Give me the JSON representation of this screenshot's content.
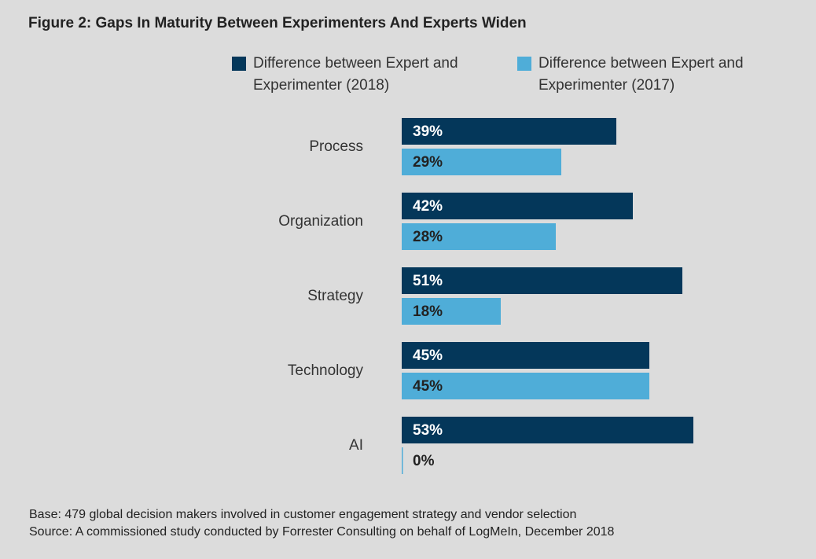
{
  "title": "Figure 2: Gaps In Maturity Between Experimenters And Experts Widen",
  "footer": {
    "base": "Base: 479 global decision makers involved in customer engagement strategy and vendor selection",
    "source": "Source: A commissioned study conducted by Forrester Consulting on behalf of LogMeIn, December 2018"
  },
  "colors": {
    "series_2018": "#04375a",
    "series_2017": "#4fadd8",
    "background": "#dcdcdc"
  },
  "chart_data": {
    "type": "bar",
    "orientation": "horizontal",
    "categories": [
      "Process",
      "Organization",
      "Strategy",
      "Technology",
      "AI"
    ],
    "series": [
      {
        "name": "Difference between Expert and Experimenter (2018)",
        "values": [
          39,
          42,
          51,
          45,
          53
        ],
        "labels": [
          "39%",
          "42%",
          "51%",
          "45%",
          "53%"
        ]
      },
      {
        "name": "Difference between Expert and Experimenter (2017)",
        "values": [
          29,
          28,
          18,
          45,
          0
        ],
        "labels": [
          "29%",
          "28%",
          "18%",
          "45%",
          "0%"
        ]
      }
    ],
    "legend": "top",
    "grid": false,
    "value_unit": "%"
  }
}
